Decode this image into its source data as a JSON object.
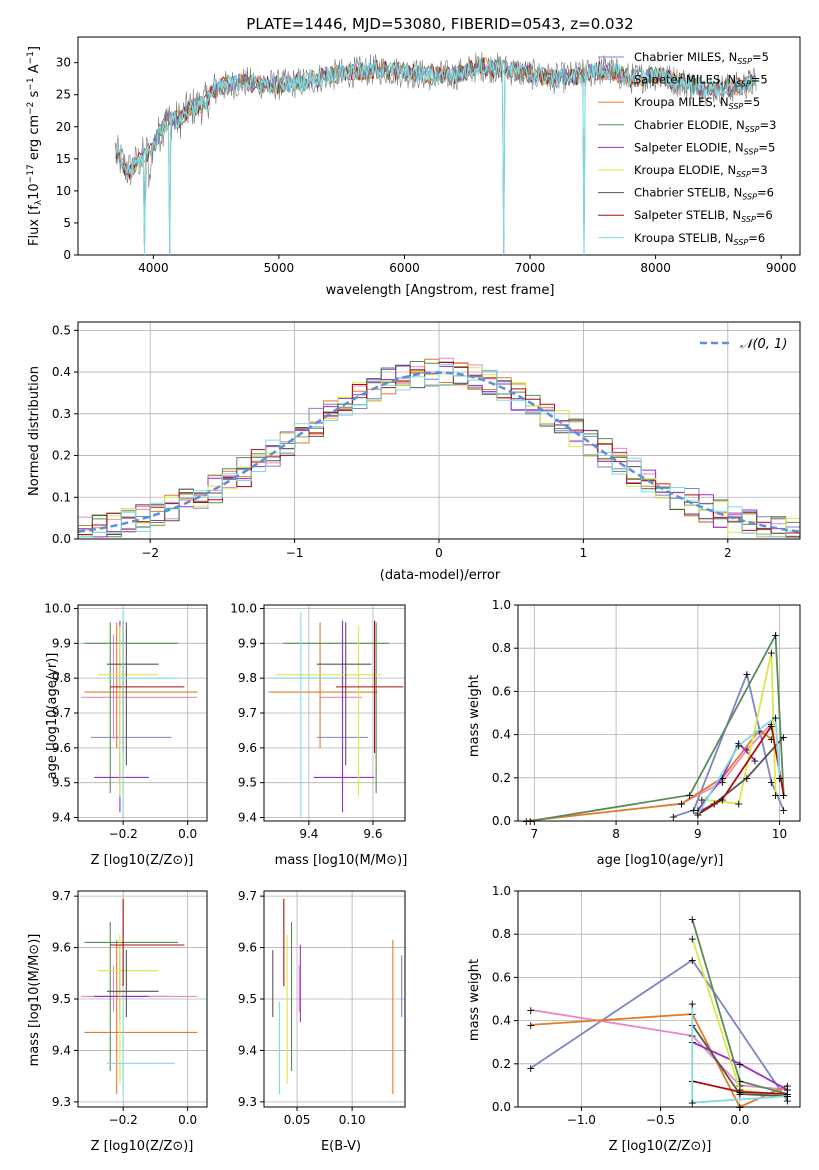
{
  "figure_title": "PLATE=1446, MJD=53080, FIBERID=0543, z=0.032",
  "palette": [
    "#7b86c7",
    "#e78ac3",
    "#e07b2a",
    "#5a8a5a",
    "#9b2fc9",
    "#d9e84a",
    "#555555",
    "#a81010",
    "#7fdbe0"
  ],
  "chart_data": [
    {
      "id": "spectrum",
      "type": "line",
      "title": "PLATE=1446, MJD=53080, FIBERID=0543, z=0.032",
      "xlabel": "wavelength [Angstrom, rest frame]",
      "ylabel": "Flux [f_λ 10^-17 erg cm^-2 s^-1 A^-1]",
      "xlim": [
        3400,
        9150
      ],
      "ylim": [
        0,
        34
      ],
      "xticks": [
        "4000",
        "5000",
        "6000",
        "7000",
        "8000",
        "9000"
      ],
      "yticks": [
        "0",
        "5",
        "10",
        "15",
        "20",
        "25",
        "30"
      ],
      "grid": false,
      "legend_position": "top-right",
      "legend": [
        "Chabrier MILES, N_SSP=5",
        "Salpeter MILES, N_SSP=5",
        "Kroupa MILES, N_SSP=5",
        "Chabrier ELODIE, N_SSP=3",
        "Salpeter ELODIE, N_SSP=5",
        "Kroupa ELODIE, N_SSP=3",
        "Chabrier STELIB, N_SSP=6",
        "Salpeter STELIB, N_SSP=6",
        "Kroupa STELIB, N_SSP=6"
      ],
      "legend_colors": [
        "#7b86c7",
        "#e78ac3",
        "#e07b2a",
        "#5a8a5a",
        "#9b2fc9",
        "#d9e84a",
        "#555555",
        "#a81010",
        "#7fdbe0"
      ],
      "continuum": [
        [
          3700,
          16
        ],
        [
          3800,
          13
        ],
        [
          3900,
          15
        ],
        [
          4000,
          17
        ],
        [
          4100,
          21
        ],
        [
          4200,
          21
        ],
        [
          4300,
          23
        ],
        [
          4400,
          23.5
        ],
        [
          4500,
          26
        ],
        [
          4700,
          27
        ],
        [
          5000,
          26.5
        ],
        [
          5200,
          27
        ],
        [
          5400,
          28
        ],
        [
          5600,
          28.5
        ],
        [
          5800,
          29
        ],
        [
          6000,
          28.5
        ],
        [
          6200,
          28
        ],
        [
          6400,
          28
        ],
        [
          6600,
          29.5
        ],
        [
          6800,
          29
        ],
        [
          7000,
          28.2
        ],
        [
          7200,
          27.5
        ],
        [
          7400,
          28
        ],
        [
          7600,
          29
        ],
        [
          7800,
          27.5
        ],
        [
          8000,
          28
        ],
        [
          8200,
          27
        ],
        [
          8400,
          26
        ],
        [
          8600,
          26
        ],
        [
          8800,
          27
        ]
      ],
      "drops": [
        [
          3930,
          0
        ],
        [
          4130,
          0
        ],
        [
          6790,
          0
        ],
        [
          7430,
          0
        ]
      ]
    },
    {
      "id": "residuals",
      "type": "histogram",
      "xlabel": "(data-model)/error",
      "ylabel": "Normed distribution",
      "xlim": [
        -2.5,
        2.5
      ],
      "ylim": [
        0,
        0.52
      ],
      "xticks": [
        "−2",
        "−1",
        "0",
        "1",
        "2"
      ],
      "yticks": [
        "0.0",
        "0.1",
        "0.2",
        "0.3",
        "0.4",
        "0.5"
      ],
      "grid": true,
      "legend": [
        "𝒩(0, 1)"
      ],
      "legend_position": "top-right",
      "normal_color": "#5b8fd8"
    },
    {
      "id": "age-vs-Z",
      "type": "errorbar",
      "xlabel": "Z [log10(Z/Z⊙)]",
      "ylabel": "age [log10(age/yr)]",
      "xlim": [
        -0.34,
        0.06
      ],
      "ylim": [
        9.39,
        10.01
      ],
      "xticks": [
        "−0.2",
        "0.0"
      ],
      "yticks": [
        "9.4",
        "9.5",
        "9.6",
        "9.7",
        "9.8",
        "9.9",
        "10.0"
      ],
      "grid": true
    },
    {
      "id": "age-vs-mass",
      "type": "errorbar",
      "xlabel": "mass [log10(M/M⊙)]",
      "xlim": [
        9.26,
        9.7
      ],
      "ylim": [
        9.39,
        10.01
      ],
      "xticks": [
        "9.4",
        "9.6"
      ],
      "yticks": [
        "9.4",
        "9.5",
        "9.6",
        "9.7",
        "9.8",
        "9.9",
        "10.0"
      ],
      "grid": true
    },
    {
      "id": "weight-vs-age",
      "type": "line",
      "xlabel": "age [log10(age/yr)]",
      "ylabel": "mass weight",
      "xlim": [
        6.8,
        10.25
      ],
      "ylim": [
        0,
        1.0
      ],
      "xticks": [
        "7",
        "8",
        "9",
        "10"
      ],
      "yticks": [
        "0.0",
        "0.2",
        "0.4",
        "0.6",
        "0.8",
        "1.0"
      ],
      "grid": true
    },
    {
      "id": "mass-vs-Z",
      "type": "errorbar",
      "xlabel": "Z [log10(Z/Z⊙)]",
      "ylabel": "mass [log10(M/M⊙)]",
      "xlim": [
        -0.34,
        0.06
      ],
      "ylim": [
        9.29,
        9.71
      ],
      "xticks": [
        "−0.2",
        "0.0"
      ],
      "yticks": [
        "9.3",
        "9.4",
        "9.5",
        "9.6",
        "9.7"
      ],
      "grid": true
    },
    {
      "id": "mass-vs-ebv",
      "type": "errorbar",
      "xlabel": "E(B-V)",
      "xlim": [
        0.02,
        0.148
      ],
      "ylim": [
        9.29,
        9.71
      ],
      "xticks": [
        "0.05",
        "0.10"
      ],
      "yticks": [
        "9.3",
        "9.4",
        "9.5",
        "9.6",
        "9.7"
      ],
      "grid": true
    },
    {
      "id": "weight-vs-Z",
      "type": "line",
      "xlabel": "Z [log10(Z/Z⊙)]",
      "ylabel": "mass weight",
      "xlim": [
        -1.4,
        0.38
      ],
      "ylim": [
        0,
        1.0
      ],
      "xticks": [
        "−1.0",
        "−0.5",
        "0.0"
      ],
      "yticks": [
        "0.0",
        "0.2",
        "0.4",
        "0.6",
        "0.8",
        "1.0"
      ],
      "grid": true
    }
  ],
  "labels": {
    "spec_ylabel": "Flux [f",
    "spec_ylabel_sub": "λ",
    "spec_ylabel_rest": "10",
    "spec_ylabel_exp1": "−17",
    "spec_ylabel_mid": " erg cm",
    "spec_ylabel_exp2": "−2",
    "spec_ylabel_mid2": " s",
    "spec_ylabel_exp3": "−1",
    "spec_ylabel_end": " A",
    "spec_ylabel_exp4": "−1",
    "spec_ylabel_close": "]"
  }
}
